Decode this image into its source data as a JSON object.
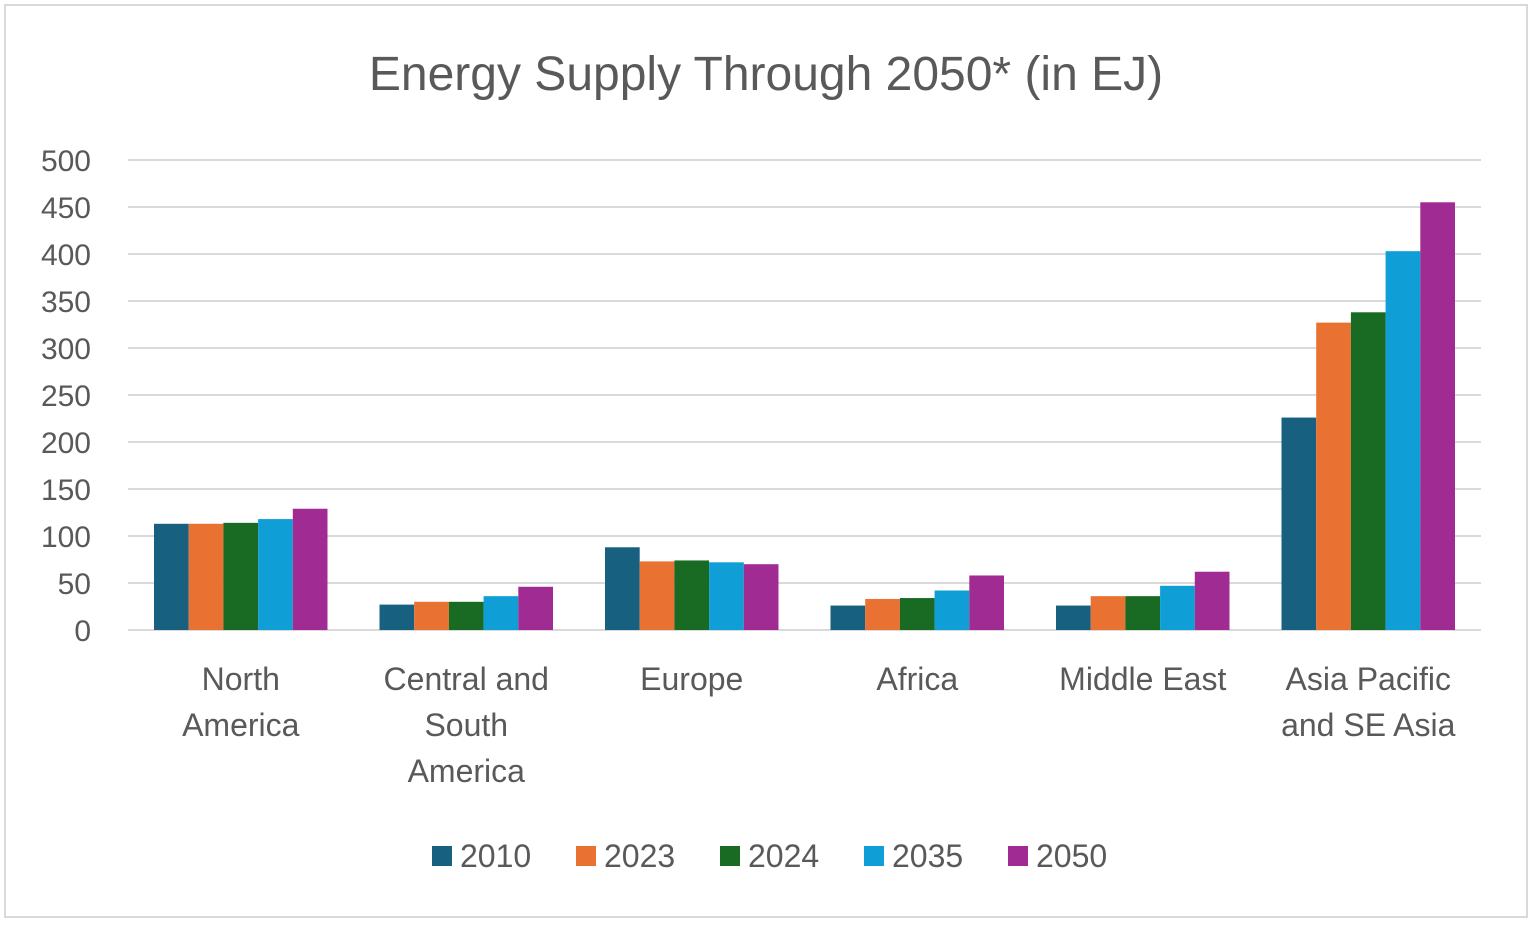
{
  "chart_data": {
    "type": "bar",
    "title": "Energy Supply Through 2050* (in EJ)",
    "xlabel": "",
    "ylabel": "",
    "ylim": [
      0,
      500
    ],
    "yticks": [
      0,
      50,
      100,
      150,
      200,
      250,
      300,
      350,
      400,
      450,
      500
    ],
    "grid": true,
    "legend_position": "bottom",
    "categories": [
      [
        "North",
        "America"
      ],
      [
        "Central and",
        "South",
        "America"
      ],
      [
        "Europe"
      ],
      [
        "Africa"
      ],
      [
        "Middle East"
      ],
      [
        "Asia Pacific",
        "and SE Asia"
      ]
    ],
    "series": [
      {
        "name": "2010",
        "color": "#17607f",
        "values": [
          113,
          27,
          88,
          26,
          26,
          226
        ]
      },
      {
        "name": "2023",
        "color": "#e97132",
        "values": [
          113,
          30,
          73,
          33,
          36,
          327
        ]
      },
      {
        "name": "2024",
        "color": "#196b24",
        "values": [
          114,
          30,
          74,
          34,
          36,
          338
        ]
      },
      {
        "name": "2035",
        "color": "#0f9ed5",
        "values": [
          118,
          36,
          72,
          42,
          47,
          403
        ]
      },
      {
        "name": "2050",
        "color": "#a02b93",
        "values": [
          129,
          46,
          70,
          58,
          62,
          455
        ]
      }
    ]
  }
}
